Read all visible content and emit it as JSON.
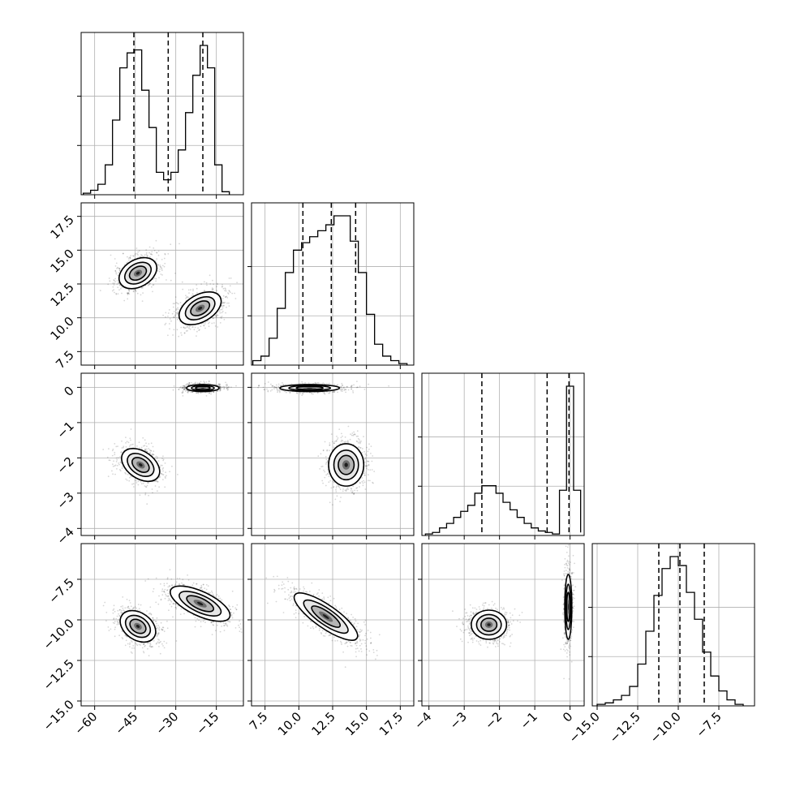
{
  "chart_data": {
    "type": "corner",
    "title": "",
    "grid": true,
    "dimensions": [
      {
        "index": 0,
        "range": [
          -65,
          -5
        ],
        "ticks": [
          -60,
          -45,
          -30,
          -15
        ],
        "tick_labels": [
          "−60",
          "−45",
          "−30",
          "−15"
        ],
        "quantiles": [
          -45.5,
          -32.8,
          -20.0
        ]
      },
      {
        "index": 1,
        "range": [
          6.5,
          18.5
        ],
        "ticks": [
          7.5,
          10.0,
          12.5,
          15.0,
          17.5
        ],
        "tick_labels": [
          "7.5",
          "10.0",
          "12.5",
          "15.0",
          "17.5"
        ],
        "quantiles": [
          10.3,
          12.4,
          14.2
        ]
      },
      {
        "index": 2,
        "range": [
          -4.2,
          0.4
        ],
        "ticks": [
          -4,
          -3,
          -2,
          -1,
          0
        ],
        "tick_labels": [
          "−4",
          "−3",
          "−2",
          "−1",
          "0"
        ],
        "quantiles": [
          -2.5,
          -0.65,
          -0.03
        ]
      },
      {
        "index": 3,
        "range": [
          -15.3,
          -5.3
        ],
        "ticks": [
          -15.0,
          -12.5,
          -10.0,
          -7.5
        ],
        "tick_labels": [
          "−15.0",
          "−12.5",
          "−10.0",
          "−7.5"
        ],
        "quantiles": [
          -11.2,
          -9.9,
          -8.4
        ]
      }
    ],
    "histograms": [
      {
        "dim": 0,
        "bins": [
          -64.2,
          -61.5,
          -58.8,
          -56.1,
          -53.4,
          -50.7,
          -48.0,
          -45.3,
          -42.6,
          -39.9,
          -37.2,
          -34.5,
          -31.8,
          -29.1,
          -26.4,
          -23.7,
          -21.0,
          -18.3,
          -15.6,
          -12.9,
          -10.2
        ],
        "counts": [
          0.01,
          0.03,
          0.07,
          0.2,
          0.5,
          0.85,
          0.95,
          0.97,
          0.7,
          0.45,
          0.15,
          0.1,
          0.15,
          0.3,
          0.55,
          0.8,
          1.0,
          0.85,
          0.2,
          0.02
        ]
      },
      {
        "dim": 1,
        "bins": [
          6.6,
          7.2,
          7.8,
          8.4,
          9.0,
          9.6,
          10.2,
          10.8,
          11.4,
          12.0,
          12.6,
          13.2,
          13.8,
          14.4,
          15.0,
          15.6,
          16.2,
          16.8,
          17.4,
          18.0
        ],
        "counts": [
          0.03,
          0.06,
          0.18,
          0.38,
          0.62,
          0.77,
          0.82,
          0.86,
          0.9,
          0.94,
          1.0,
          1.0,
          0.83,
          0.62,
          0.34,
          0.14,
          0.06,
          0.03,
          0.01
        ]
      },
      {
        "dim": 2,
        "bins": [
          -4.1,
          -3.9,
          -3.7,
          -3.5,
          -3.3,
          -3.1,
          -2.9,
          -2.7,
          -2.5,
          -2.3,
          -2.1,
          -1.9,
          -1.7,
          -1.5,
          -1.3,
          -1.1,
          -0.9,
          -0.7,
          -0.5,
          -0.3,
          -0.1,
          0.1,
          0.3
        ],
        "counts": [
          0.01,
          0.02,
          0.05,
          0.08,
          0.12,
          0.16,
          0.2,
          0.28,
          0.33,
          0.33,
          0.28,
          0.22,
          0.17,
          0.12,
          0.08,
          0.05,
          0.03,
          0.02,
          0.01,
          0.3,
          0.99,
          0.3,
          0.02
        ]
      },
      {
        "dim": 3,
        "bins": [
          -15.0,
          -14.5,
          -14.0,
          -13.5,
          -13.0,
          -12.5,
          -12.0,
          -11.5,
          -11.0,
          -10.5,
          -10.0,
          -9.5,
          -9.0,
          -8.5,
          -8.0,
          -7.5,
          -7.0,
          -6.5,
          -6.0
        ],
        "counts": [
          0.01,
          0.02,
          0.04,
          0.07,
          0.13,
          0.28,
          0.5,
          0.74,
          0.92,
          1.0,
          0.94,
          0.76,
          0.58,
          0.36,
          0.2,
          0.1,
          0.04,
          0.01
        ]
      }
    ],
    "pairs": [
      {
        "x_dim": 0,
        "y_dim": 1,
        "modes": [
          {
            "center": [
              -44,
              13.3
            ],
            "spread": [
              5,
              1.5
            ],
            "angle": -60
          },
          {
            "center": [
              -21,
              10.7
            ],
            "spread": [
              5,
              1.7
            ],
            "angle": -60
          }
        ]
      },
      {
        "x_dim": 0,
        "y_dim": 2,
        "modes": [
          {
            "center": [
              -43,
              -2.2
            ],
            "spread": [
              5,
              0.6
            ],
            "angle": 55
          },
          {
            "center": [
              -20,
              -0.02
            ],
            "spread": [
              6,
              0.1
            ],
            "angle": 0
          }
        ]
      },
      {
        "x_dim": 1,
        "y_dim": 2,
        "modes": [
          {
            "center": [
              10.8,
              -0.02
            ],
            "spread": [
              2.2,
              0.1
            ],
            "angle": 0
          },
          {
            "center": [
              13.5,
              -2.2
            ],
            "spread": [
              1.3,
              0.6
            ],
            "angle": 0
          }
        ]
      },
      {
        "x_dim": 0,
        "y_dim": 3,
        "modes": [
          {
            "center": [
              -44,
              -10.4
            ],
            "spread": [
              5,
              1.2
            ],
            "angle": 55
          },
          {
            "center": [
              -21,
              -9.0
            ],
            "spread": [
              4.5,
              2.0
            ],
            "angle": 65
          }
        ]
      },
      {
        "x_dim": 1,
        "y_dim": 3,
        "modes": [
          {
            "center": [
              12.0,
              -9.8
            ],
            "spread": [
              2.8,
              0.7
            ],
            "angle": -35
          }
        ]
      },
      {
        "x_dim": 2,
        "y_dim": 3,
        "modes": [
          {
            "center": [
              -2.3,
              -10.3
            ],
            "spread": [
              0.5,
              0.9
            ],
            "angle": 0
          },
          {
            "center": [
              -0.05,
              -9.2
            ],
            "spread": [
              0.1,
              2.0
            ],
            "angle": 0
          }
        ]
      }
    ]
  }
}
